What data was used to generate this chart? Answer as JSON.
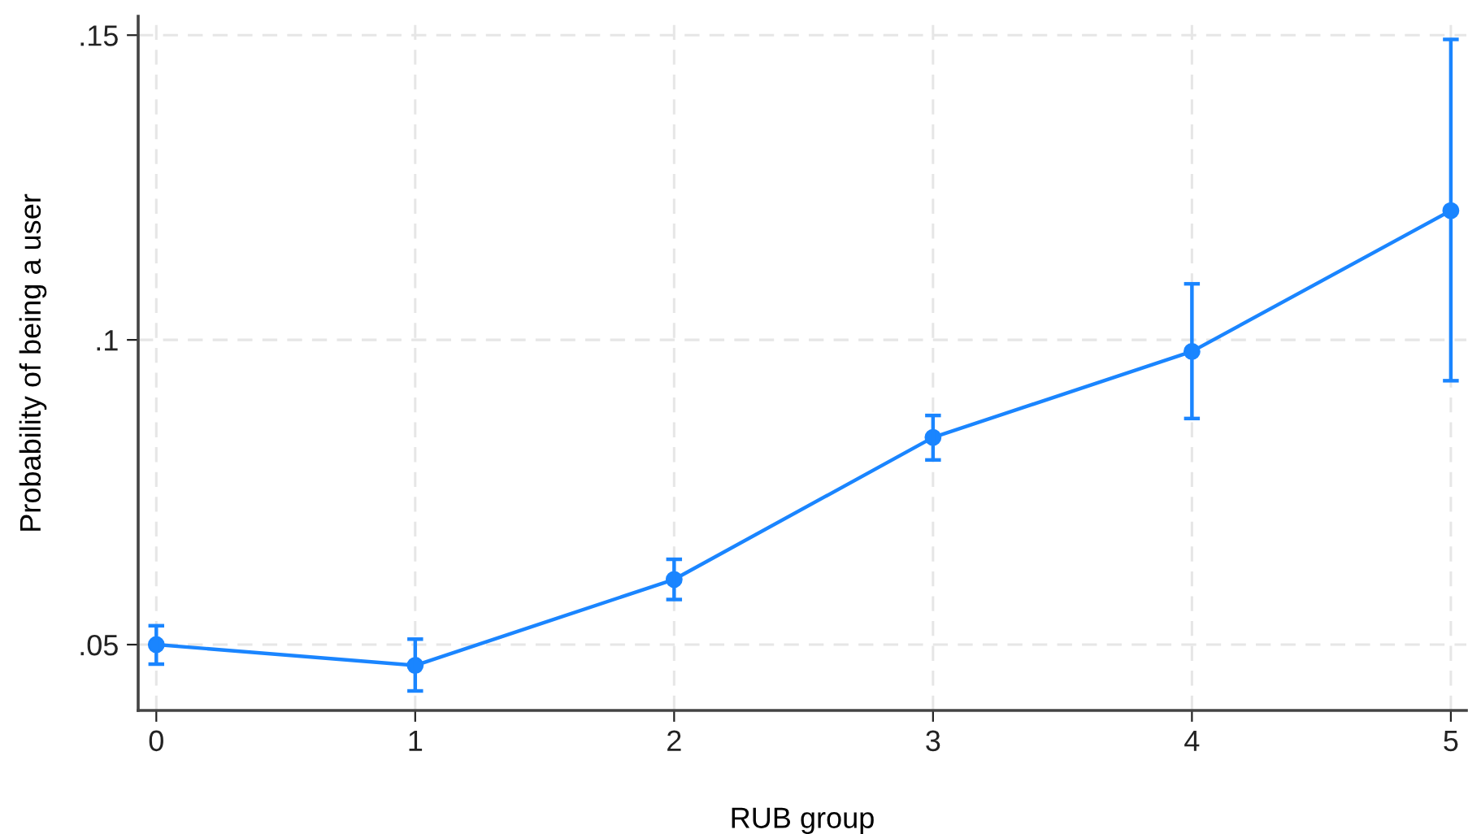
{
  "chart_data": {
    "type": "line",
    "xlabel": "RUB group",
    "ylabel": "Probability of being a user",
    "x": [
      0,
      1,
      2,
      3,
      4,
      5
    ],
    "series": [
      {
        "color": "#1a85ff",
        "values": [
          0.05,
          0.0466,
          0.0607,
          0.084,
          0.0981,
          0.1212
        ],
        "errors": [
          [
            0.0468,
            0.0531
          ],
          [
            0.0424,
            0.0509
          ],
          [
            0.0574,
            0.064
          ],
          [
            0.0803,
            0.0876
          ],
          [
            0.0871,
            0.1092
          ],
          [
            0.0933,
            0.1493
          ]
        ]
      }
    ],
    "xlim": [
      -0.07,
      5.06
    ],
    "ylim": [
      0.0392,
      0.1531
    ],
    "xticks": [
      0,
      1,
      2,
      3,
      4,
      5
    ],
    "yticks": [
      {
        "value": 0.05,
        "label": ".05"
      },
      {
        "value": 0.1,
        "label": ".1"
      },
      {
        "value": 0.15,
        "label": ".15"
      }
    ],
    "grid": true,
    "marker": "circle",
    "line_style": "solid"
  }
}
